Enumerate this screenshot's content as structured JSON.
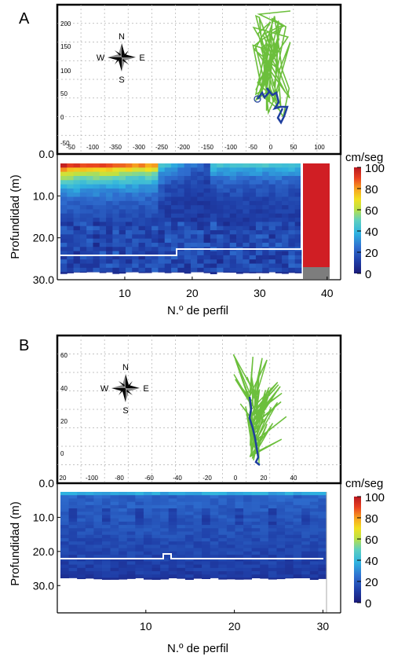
{
  "panels": [
    {
      "letter": "A",
      "compass": {
        "n": "N",
        "e": "E",
        "s": "S",
        "w": "W"
      },
      "stick_plot": {
        "type": "line",
        "x_ticks": [
          "-50",
          "-100",
          "-350",
          "-300",
          "-250",
          "-200",
          "-150",
          "-100",
          "-50",
          "0",
          "50",
          "100"
        ],
        "y_ticks": [
          "200",
          "150",
          "100",
          "50",
          "0",
          "-50"
        ],
        "series": [
          {
            "color": "#6cbf3c"
          },
          {
            "color": "#1f3f9f"
          }
        ]
      },
      "heatmap": {
        "type": "heatmap",
        "ylabel": "Profundidad (m)",
        "xlabel": "N.º de perfil",
        "y_ticks": [
          "0.0",
          "10.0",
          "20.0",
          "30.0"
        ],
        "x_ticks": [
          "10",
          "20",
          "30",
          "40"
        ],
        "xlim": [
          0,
          42
        ],
        "ylim": [
          0,
          30
        ],
        "profiles": 37,
        "bottom_depth": 28,
        "colorbar": {
          "unit": "cm/seg",
          "ticks": [
            "100",
            "80",
            "60",
            "40",
            "20",
            "0"
          ],
          "range": [
            0,
            100
          ]
        }
      }
    },
    {
      "letter": "B",
      "compass": {
        "n": "N",
        "e": "E",
        "s": "S",
        "w": "W"
      },
      "stick_plot": {
        "type": "line",
        "x_ticks": [
          "20",
          "-100",
          "-80",
          "-60",
          "-40",
          "-20",
          "0",
          "20",
          "40"
        ],
        "y_ticks": [
          "60",
          "40",
          "20",
          "0"
        ],
        "series": [
          {
            "color": "#6cbf3c"
          },
          {
            "color": "#1f3f9f"
          }
        ]
      },
      "heatmap": {
        "type": "heatmap",
        "ylabel": "Profundidad (m)",
        "xlabel": "N.º de perfil",
        "y_ticks": [
          "0.0",
          "10.0",
          "20.0",
          "30.0"
        ],
        "x_ticks": [
          "10",
          "20",
          "30"
        ],
        "xlim": [
          0,
          32
        ],
        "ylim": [
          0,
          38
        ],
        "profiles": 32,
        "bottom_depth": 27,
        "colorbar": {
          "unit": "cm/seg",
          "ticks": [
            "100",
            "80",
            "60",
            "40",
            "20",
            "0"
          ],
          "range": [
            0,
            100
          ]
        }
      }
    }
  ]
}
